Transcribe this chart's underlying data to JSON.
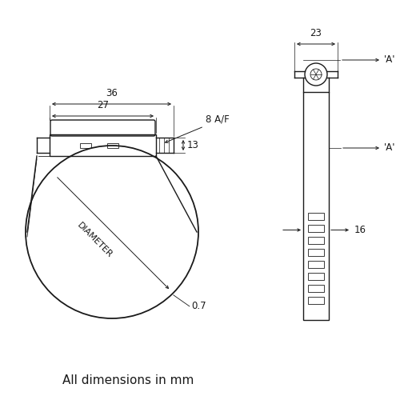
{
  "bg_color": "#ffffff",
  "line_color": "#1a1a1a",
  "fig_width": 5.0,
  "fig_height": 5.0,
  "dpi": 100,
  "bottom_text": "All dimensions in mm",
  "dims": {
    "width_36": "36",
    "width_27": "27",
    "af_8": "8 A/F",
    "height_13": "13",
    "width_23": "23",
    "height_16": "16",
    "diameter_label": "DIAMETER",
    "thickness_07": "0.7",
    "label_A_top": "'A'",
    "label_A_mid": "'A'"
  }
}
